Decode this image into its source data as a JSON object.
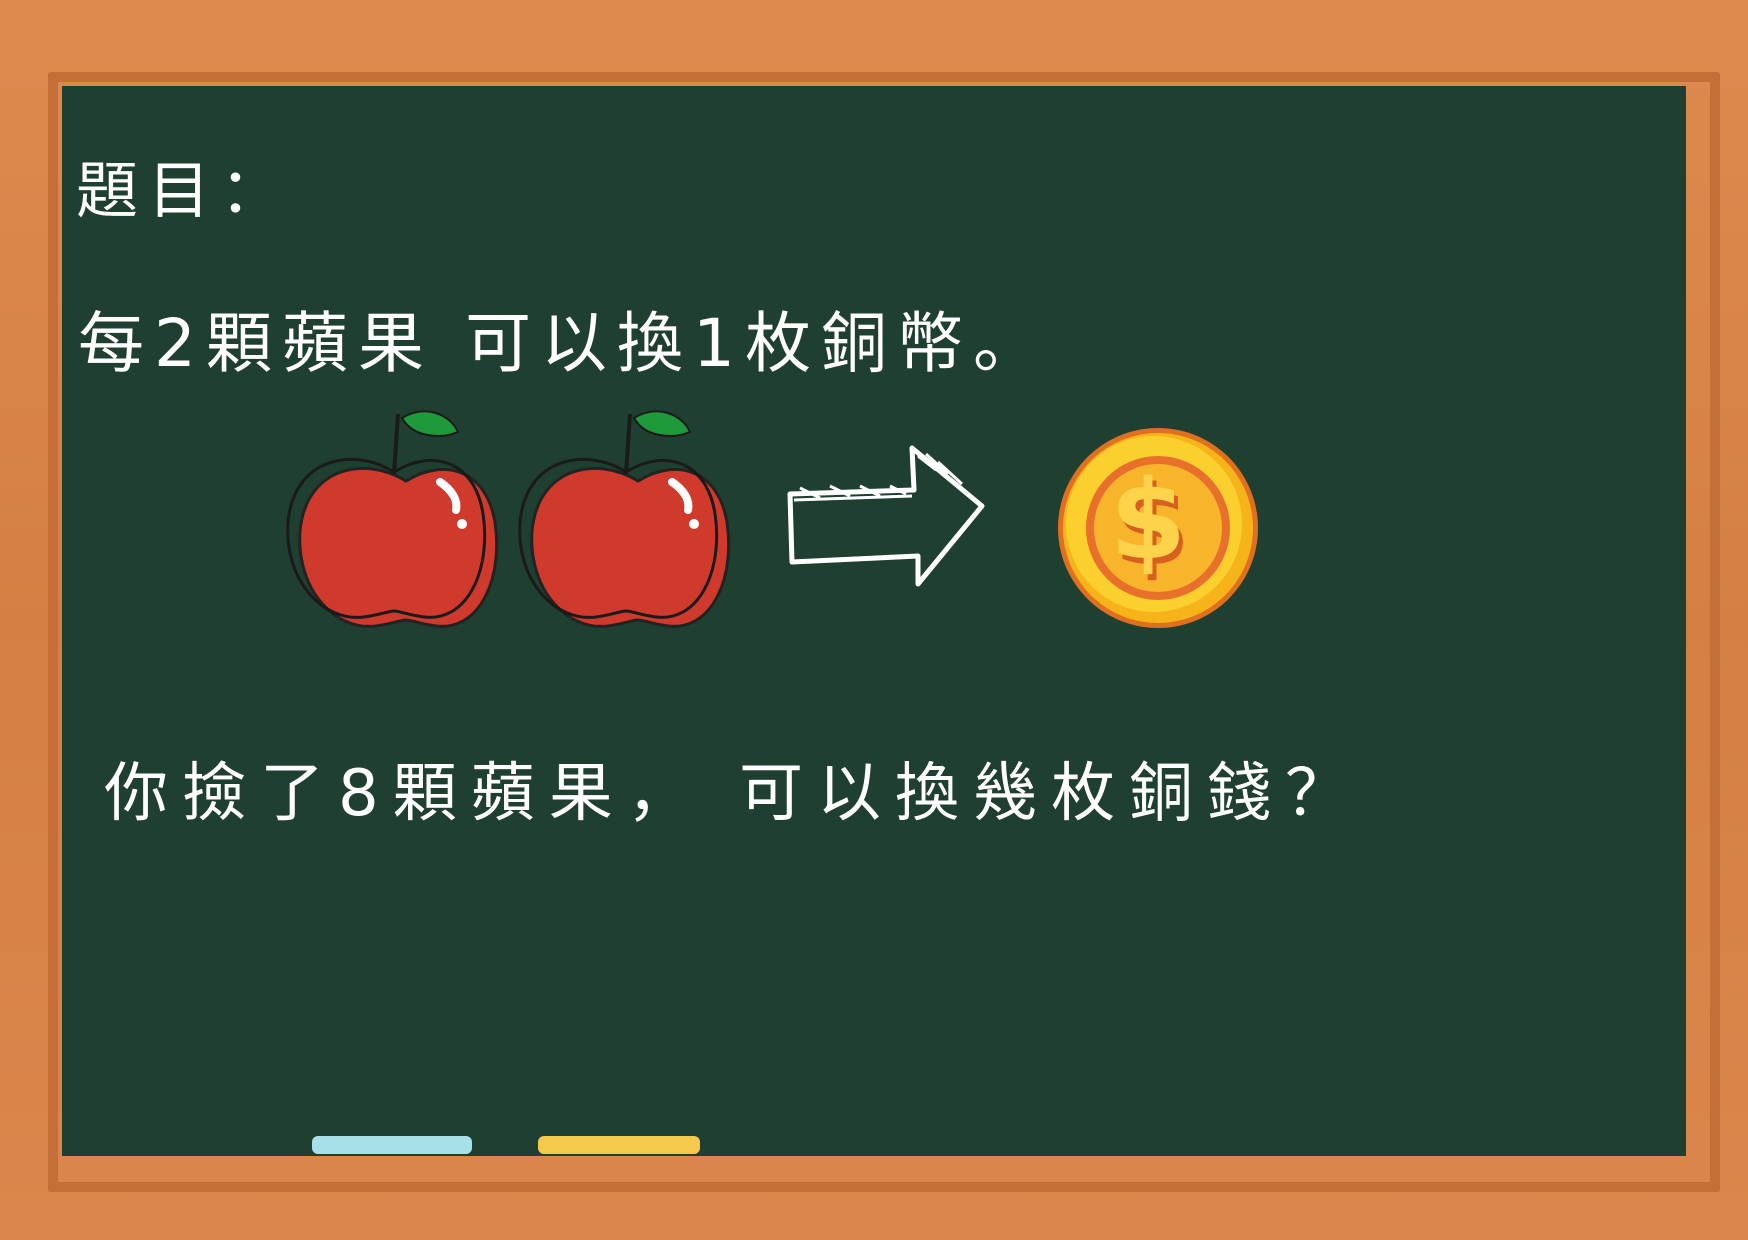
{
  "board": {
    "title": "題目：",
    "rule": "每2顆蘋果 可以換1枚銅幣。",
    "question": "你撿了8顆蘋果， 可以換幾枚銅錢？"
  },
  "illustration": {
    "items": [
      "apple-icon",
      "apple-icon",
      "arrow-right-icon",
      "coin-icon"
    ],
    "coin_symbol": "$"
  },
  "colors": {
    "board": "#1f4030",
    "frame": "#d8834a",
    "apple": "#d93a2c",
    "leaf": "#1e9a3a",
    "coin": "#f2b51a",
    "chalk_blue": "#a8e0ea",
    "chalk_yellow": "#f5c94c"
  }
}
